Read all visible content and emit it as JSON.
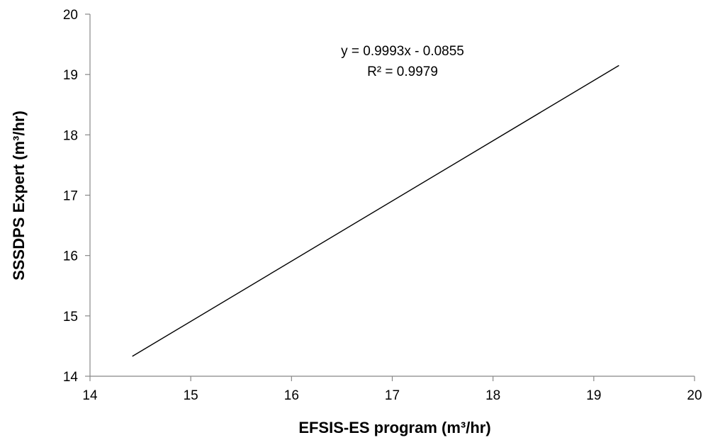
{
  "chart_data": {
    "type": "line",
    "title": "",
    "xlabel": "EFSIS-ES program (m³/hr)",
    "ylabel": "SSSDPS Expert (m³/hr)",
    "xlim": [
      14,
      20
    ],
    "ylim": [
      14,
      20
    ],
    "xticks": [
      "14",
      "15",
      "16",
      "17",
      "18",
      "19",
      "20"
    ],
    "yticks": [
      "14",
      "15",
      "16",
      "17",
      "18",
      "19",
      "20"
    ],
    "grid": false,
    "legend": "none",
    "series": [
      {
        "x": [
          14.42,
          19.25
        ],
        "y": [
          14.33,
          19.15
        ],
        "color": "#000000"
      }
    ],
    "annotations": [
      "y = 0.9993x - 0.0855",
      "R² = 0.9979"
    ]
  }
}
